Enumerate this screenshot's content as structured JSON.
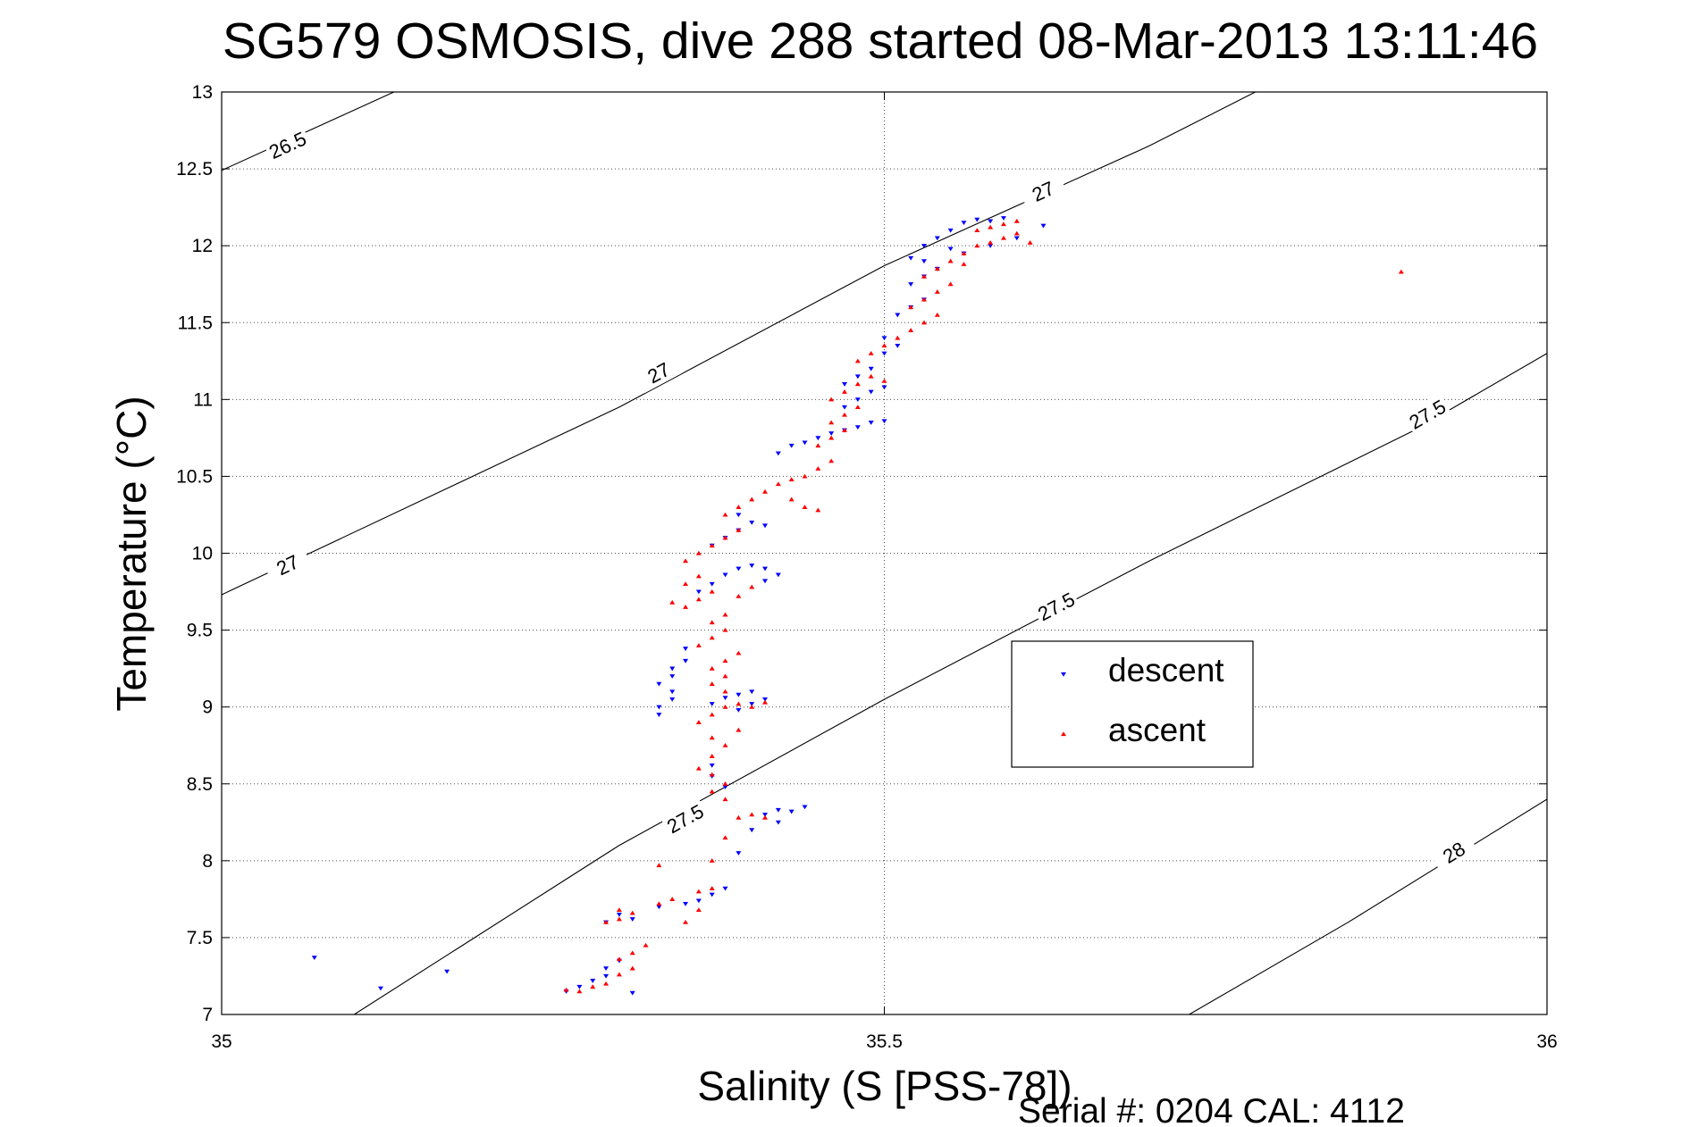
{
  "chart_data": {
    "type": "scatter",
    "title": "SG579 OSMOSIS, dive 288 started 08-Mar-2013 13:11:46",
    "xlabel": "Salinity (S [PSS-78])",
    "ylabel": "Temperature (°C)",
    "footer": "Serial #: 0204  CAL: 4112",
    "xlim": [
      35,
      36
    ],
    "ylim": [
      7,
      13
    ],
    "grid": true,
    "x_ticks": [
      35,
      35.5,
      36
    ],
    "x_tick_labels": [
      "35",
      "35.5",
      "36"
    ],
    "y_ticks": [
      7,
      7.5,
      8,
      8.5,
      9,
      9.5,
      10,
      10.5,
      11,
      11.5,
      12,
      12.5,
      13
    ],
    "y_tick_labels": [
      "7",
      "7.5",
      "8",
      "8.5",
      "9",
      "9.5",
      "10",
      "10.5",
      "11",
      "11.5",
      "12",
      "12.5",
      "13"
    ],
    "legend_position": "center-right",
    "legend": [
      {
        "name": "descent",
        "color": "#0000ff",
        "marker": "triangle-down"
      },
      {
        "name": "ascent",
        "color": "#ff0000",
        "marker": "triangle-up"
      }
    ],
    "contours": [
      {
        "label": "26.5",
        "value": 26.5,
        "points": [
          [
            35,
            12.49
          ],
          [
            35.13,
            13.0
          ]
        ],
        "label_points": [
          [
            35.05,
            12.65
          ]
        ]
      },
      {
        "label": "27",
        "value": 27,
        "points": [
          [
            35,
            9.73
          ],
          [
            35.3,
            10.95
          ],
          [
            35.5,
            11.87
          ],
          [
            35.7,
            12.65
          ],
          [
            35.78,
            13.0
          ]
        ],
        "label_points": [
          [
            35.05,
            9.92
          ],
          [
            35.33,
            11.17
          ],
          [
            35.62,
            12.35
          ]
        ]
      },
      {
        "label": "27.5",
        "value": 27.5,
        "points": [
          [
            35.1,
            7.0
          ],
          [
            35.3,
            8.1
          ],
          [
            35.5,
            9.05
          ],
          [
            35.7,
            9.95
          ],
          [
            35.9,
            10.8
          ],
          [
            36,
            11.3
          ]
        ],
        "label_points": [
          [
            35.35,
            8.27
          ],
          [
            35.63,
            9.65
          ],
          [
            35.91,
            10.9
          ]
        ]
      },
      {
        "label": "28",
        "value": 28,
        "points": [
          [
            35.73,
            7.0
          ],
          [
            35.85,
            7.6
          ],
          [
            36,
            8.4
          ]
        ],
        "label_points": [
          [
            35.93,
            8.05
          ]
        ]
      }
    ],
    "series": [
      {
        "name": "descent",
        "color": "#0000ff",
        "marker": "triangle-down",
        "points": [
          [
            35.07,
            7.37
          ],
          [
            35.12,
            7.17
          ],
          [
            35.17,
            7.28
          ],
          [
            35.26,
            7.15
          ],
          [
            35.27,
            7.18
          ],
          [
            35.28,
            7.22
          ],
          [
            35.29,
            7.25
          ],
          [
            35.29,
            7.3
          ],
          [
            35.3,
            7.35
          ],
          [
            35.31,
            7.14
          ],
          [
            35.29,
            7.6
          ],
          [
            35.3,
            7.65
          ],
          [
            35.31,
            7.62
          ],
          [
            35.33,
            7.7
          ],
          [
            35.35,
            7.72
          ],
          [
            35.36,
            7.74
          ],
          [
            35.37,
            7.78
          ],
          [
            35.38,
            7.82
          ],
          [
            35.39,
            8.05
          ],
          [
            35.4,
            8.2
          ],
          [
            35.41,
            8.3
          ],
          [
            35.42,
            8.33
          ],
          [
            35.43,
            8.32
          ],
          [
            35.44,
            8.35
          ],
          [
            35.42,
            8.25
          ],
          [
            35.38,
            8.48
          ],
          [
            35.37,
            8.55
          ],
          [
            35.37,
            8.62
          ],
          [
            35.33,
            8.95
          ],
          [
            35.33,
            9.0
          ],
          [
            35.34,
            9.05
          ],
          [
            35.34,
            9.1
          ],
          [
            35.33,
            9.15
          ],
          [
            35.34,
            9.2
          ],
          [
            35.35,
            9.3
          ],
          [
            35.35,
            9.38
          ],
          [
            35.34,
            9.25
          ],
          [
            35.37,
            9.02
          ],
          [
            35.38,
            9.06
          ],
          [
            35.39,
            9.08
          ],
          [
            35.4,
            9.1
          ],
          [
            35.41,
            9.05
          ],
          [
            35.4,
            9.02
          ],
          [
            35.39,
            8.98
          ],
          [
            35.36,
            9.75
          ],
          [
            35.37,
            9.8
          ],
          [
            35.38,
            9.86
          ],
          [
            35.39,
            9.9
          ],
          [
            35.4,
            9.92
          ],
          [
            35.41,
            9.9
          ],
          [
            35.42,
            9.86
          ],
          [
            35.41,
            9.82
          ],
          [
            35.37,
            10.05
          ],
          [
            35.38,
            10.1
          ],
          [
            35.39,
            10.15
          ],
          [
            35.4,
            10.2
          ],
          [
            35.41,
            10.18
          ],
          [
            35.39,
            10.25
          ],
          [
            35.42,
            10.65
          ],
          [
            35.43,
            10.7
          ],
          [
            35.44,
            10.72
          ],
          [
            35.45,
            10.75
          ],
          [
            35.46,
            10.78
          ],
          [
            35.47,
            10.8
          ],
          [
            35.48,
            10.82
          ],
          [
            35.49,
            10.85
          ],
          [
            35.5,
            10.86
          ],
          [
            35.47,
            10.95
          ],
          [
            35.48,
            11.0
          ],
          [
            35.49,
            11.05
          ],
          [
            35.5,
            11.08
          ],
          [
            35.47,
            11.1
          ],
          [
            35.48,
            11.15
          ],
          [
            35.49,
            11.2
          ],
          [
            35.5,
            11.3
          ],
          [
            35.51,
            11.35
          ],
          [
            35.5,
            11.4
          ],
          [
            35.51,
            11.55
          ],
          [
            35.52,
            11.6
          ],
          [
            35.53,
            11.65
          ],
          [
            35.52,
            11.75
          ],
          [
            35.53,
            11.8
          ],
          [
            35.54,
            11.85
          ],
          [
            35.53,
            11.9
          ],
          [
            35.52,
            11.92
          ],
          [
            35.53,
            12.0
          ],
          [
            35.54,
            12.05
          ],
          [
            35.55,
            12.1
          ],
          [
            35.56,
            12.15
          ],
          [
            35.57,
            12.17
          ],
          [
            35.58,
            12.16
          ],
          [
            35.59,
            12.18
          ],
          [
            35.55,
            11.98
          ],
          [
            35.56,
            11.95
          ],
          [
            35.58,
            12.0
          ],
          [
            35.6,
            12.05
          ],
          [
            35.62,
            12.13
          ]
        ]
      },
      {
        "name": "ascent",
        "color": "#ff0000",
        "marker": "triangle-up",
        "points": [
          [
            35.26,
            7.16
          ],
          [
            35.27,
            7.15
          ],
          [
            35.28,
            7.18
          ],
          [
            35.29,
            7.2
          ],
          [
            35.3,
            7.26
          ],
          [
            35.31,
            7.3
          ],
          [
            35.3,
            7.36
          ],
          [
            35.31,
            7.4
          ],
          [
            35.32,
            7.45
          ],
          [
            35.29,
            7.6
          ],
          [
            35.3,
            7.62
          ],
          [
            35.3,
            7.68
          ],
          [
            35.31,
            7.66
          ],
          [
            35.33,
            7.72
          ],
          [
            35.34,
            7.75
          ],
          [
            35.36,
            7.8
          ],
          [
            35.37,
            7.82
          ],
          [
            35.33,
            7.97
          ],
          [
            35.35,
            7.6
          ],
          [
            35.36,
            7.68
          ],
          [
            35.37,
            8.0
          ],
          [
            35.38,
            8.15
          ],
          [
            35.39,
            8.28
          ],
          [
            35.4,
            8.3
          ],
          [
            35.41,
            8.28
          ],
          [
            35.38,
            8.4
          ],
          [
            35.37,
            8.45
          ],
          [
            35.38,
            8.5
          ],
          [
            35.37,
            8.56
          ],
          [
            35.36,
            8.6
          ],
          [
            35.37,
            8.68
          ],
          [
            35.38,
            8.75
          ],
          [
            35.37,
            8.8
          ],
          [
            35.39,
            8.85
          ],
          [
            35.36,
            8.9
          ],
          [
            35.37,
            8.95
          ],
          [
            35.38,
            9.0
          ],
          [
            35.39,
            9.02
          ],
          [
            35.4,
            9.0
          ],
          [
            35.41,
            9.03
          ],
          [
            35.38,
            9.1
          ],
          [
            35.37,
            9.15
          ],
          [
            35.38,
            9.2
          ],
          [
            35.37,
            9.25
          ],
          [
            35.38,
            9.3
          ],
          [
            35.39,
            9.35
          ],
          [
            35.36,
            9.4
          ],
          [
            35.37,
            9.45
          ],
          [
            35.38,
            9.5
          ],
          [
            35.37,
            9.55
          ],
          [
            35.38,
            9.6
          ],
          [
            35.35,
            9.65
          ],
          [
            35.36,
            9.7
          ],
          [
            35.37,
            9.75
          ],
          [
            35.39,
            9.72
          ],
          [
            35.4,
            9.78
          ],
          [
            35.34,
            9.68
          ],
          [
            35.35,
            9.8
          ],
          [
            35.36,
            9.85
          ],
          [
            35.35,
            9.95
          ],
          [
            35.36,
            10.0
          ],
          [
            35.37,
            10.05
          ],
          [
            35.38,
            10.1
          ],
          [
            35.39,
            10.15
          ],
          [
            35.38,
            10.25
          ],
          [
            35.39,
            10.3
          ],
          [
            35.4,
            10.35
          ],
          [
            35.41,
            10.4
          ],
          [
            35.42,
            10.45
          ],
          [
            35.43,
            10.48
          ],
          [
            35.44,
            10.5
          ],
          [
            35.45,
            10.55
          ],
          [
            35.46,
            10.6
          ],
          [
            35.43,
            10.35
          ],
          [
            35.44,
            10.3
          ],
          [
            35.45,
            10.28
          ],
          [
            35.45,
            10.7
          ],
          [
            35.46,
            10.75
          ],
          [
            35.47,
            10.8
          ],
          [
            35.46,
            10.85
          ],
          [
            35.47,
            10.9
          ],
          [
            35.48,
            10.95
          ],
          [
            35.46,
            11.0
          ],
          [
            35.47,
            11.05
          ],
          [
            35.48,
            11.1
          ],
          [
            35.49,
            11.15
          ],
          [
            35.5,
            11.12
          ],
          [
            35.48,
            11.25
          ],
          [
            35.49,
            11.3
          ],
          [
            35.5,
            11.35
          ],
          [
            35.51,
            11.4
          ],
          [
            35.52,
            11.45
          ],
          [
            35.53,
            11.5
          ],
          [
            35.54,
            11.55
          ],
          [
            35.52,
            11.6
          ],
          [
            35.53,
            11.65
          ],
          [
            35.54,
            11.7
          ],
          [
            35.55,
            11.75
          ],
          [
            35.53,
            11.8
          ],
          [
            35.54,
            11.85
          ],
          [
            35.55,
            11.9
          ],
          [
            35.56,
            11.95
          ],
          [
            35.57,
            12.0
          ],
          [
            35.58,
            12.02
          ],
          [
            35.59,
            12.05
          ],
          [
            35.6,
            12.08
          ],
          [
            35.57,
            12.1
          ],
          [
            35.58,
            12.12
          ],
          [
            35.59,
            12.14
          ],
          [
            35.6,
            12.16
          ],
          [
            35.56,
            11.88
          ],
          [
            35.61,
            12.02
          ],
          [
            35.89,
            11.83
          ]
        ]
      }
    ]
  }
}
